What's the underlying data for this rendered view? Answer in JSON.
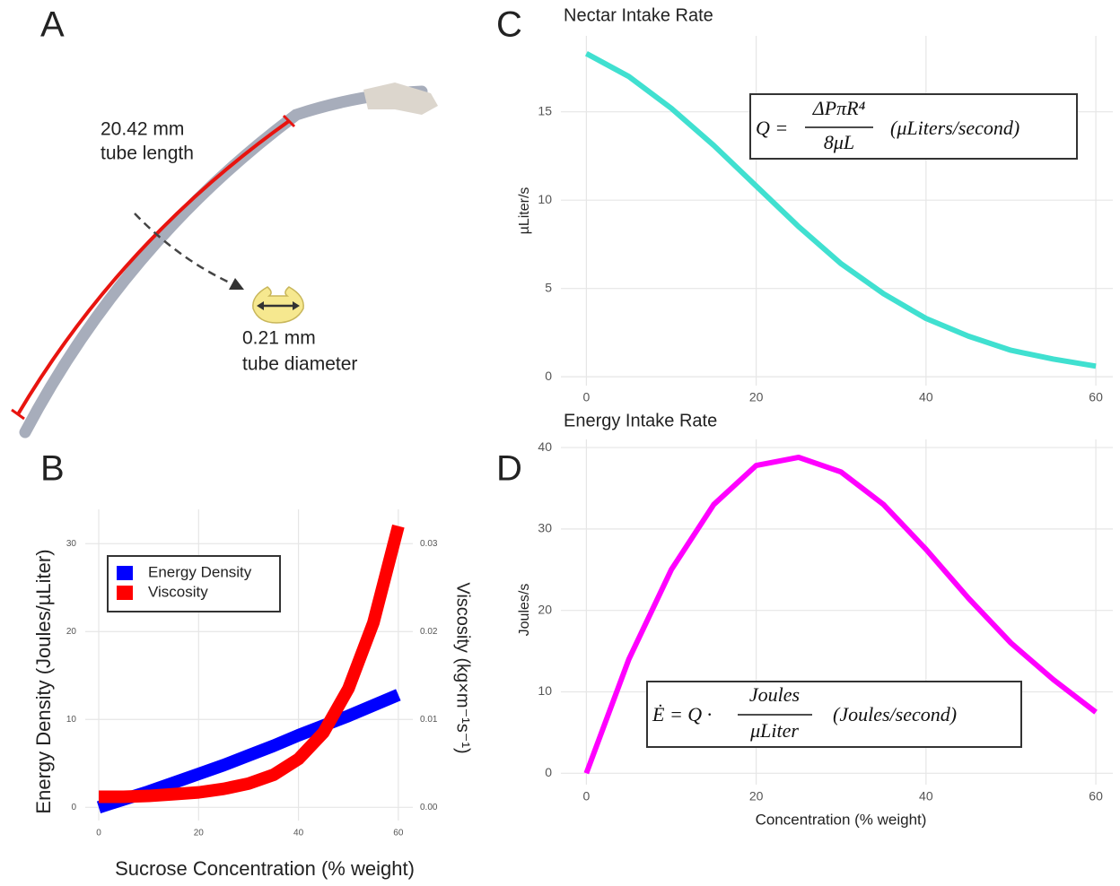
{
  "panel_a": {
    "label": "A",
    "length_value": "20.42 mm",
    "length_caption": "tube length",
    "diameter_value": "0.21 mm",
    "diameter_caption": "tube diameter"
  },
  "chart_data": [
    {
      "panel": "B",
      "type": "line",
      "x_label": "Sucrose Concentration (% weight)",
      "y_label": "Energy Density  (Joules/µLiter)",
      "y2_label": "Viscosity  (kg×m⁻¹s⁻¹)",
      "x": [
        0,
        5,
        10,
        15,
        20,
        25,
        30,
        35,
        40,
        45,
        50,
        55,
        60
      ],
      "xlim": [
        -2.7,
        62.9
      ],
      "xticks": [
        0,
        20,
        40,
        60
      ],
      "ylim": [
        -1.5,
        33.9
      ],
      "yticks": [
        0,
        10,
        20,
        30
      ],
      "y2lim": [
        -0.0015,
        0.0339
      ],
      "y2ticks": [
        {
          "value": 0,
          "label": "0.00"
        },
        {
          "value": 0.01,
          "label": "0.01"
        },
        {
          "value": 0.02,
          "label": "0.02"
        },
        {
          "value": 0.03,
          "label": "0.03"
        }
      ],
      "grid": true,
      "legend": "top-left",
      "series": [
        {
          "name": "Energy Density",
          "color": "#0000ff",
          "values": [
            0,
            0.9,
            1.8,
            2.8,
            3.8,
            4.8,
            5.9,
            7.0,
            8.2,
            9.3,
            10.4,
            11.6,
            12.8
          ]
        },
        {
          "name": "Viscosity",
          "color": "#ff0000",
          "axis": "y2",
          "values": [
            0.0012,
            0.0012,
            0.0013,
            0.0015,
            0.0017,
            0.0021,
            0.0027,
            0.0037,
            0.0055,
            0.0085,
            0.0135,
            0.021,
            0.032
          ]
        }
      ]
    },
    {
      "panel": "C",
      "type": "line",
      "title": "Nectar Intake Rate",
      "y_label": "µLiter/s",
      "x": [
        0,
        5,
        10,
        15,
        20,
        25,
        30,
        35,
        40,
        45,
        50,
        55,
        60
      ],
      "xlim": [
        -3,
        62
      ],
      "xticks": [
        0,
        20,
        40,
        60
      ],
      "ylim": [
        -0.5,
        19.3
      ],
      "yticks": [
        0,
        5,
        10,
        15
      ],
      "grid": true,
      "series": [
        {
          "color": "#40e0d0",
          "values": [
            18.3,
            17.0,
            15.2,
            13.1,
            10.8,
            8.5,
            6.4,
            4.7,
            3.3,
            2.3,
            1.5,
            1.0,
            0.6
          ]
        }
      ],
      "equation": {
        "lhs": "Q =",
        "numerator": "ΔPπR⁴",
        "denominator": "8μL",
        "unit": "(μLiters/second)"
      }
    },
    {
      "panel": "D",
      "type": "line",
      "title": "Energy Intake Rate",
      "x_label": "Concentration (% weight)",
      "y_label": "Joules/s",
      "x": [
        0,
        5,
        10,
        15,
        20,
        25,
        30,
        35,
        40,
        45,
        50,
        55,
        60
      ],
      "xlim": [
        -3,
        62
      ],
      "xticks": [
        0,
        20,
        40,
        60
      ],
      "ylim": [
        -1.4,
        41
      ],
      "yticks": [
        0,
        10,
        20,
        30,
        40
      ],
      "grid": true,
      "series": [
        {
          "color": "#ff00ff",
          "values": [
            0,
            14,
            25,
            33,
            37.8,
            38.8,
            37,
            33,
            27.5,
            21.5,
            16,
            11.5,
            7.5
          ]
        }
      ],
      "equation": {
        "lhs": "Ė = Q ·",
        "numerator": "Joules",
        "denominator": "μLiter",
        "unit": "(Joules/second)"
      }
    }
  ]
}
